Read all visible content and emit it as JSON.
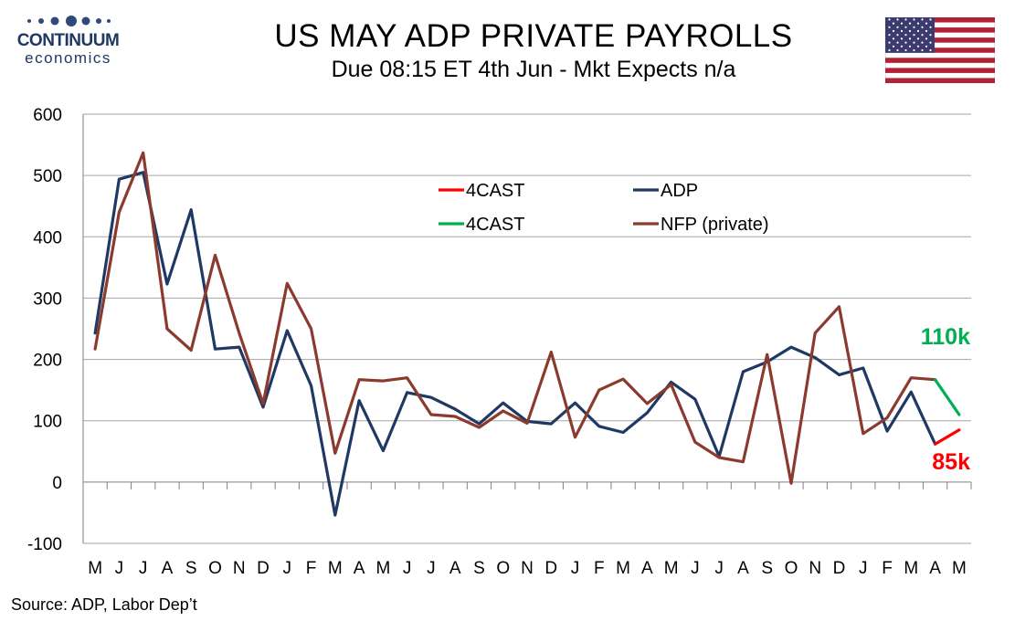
{
  "header": {
    "title": "US MAY ADP PRIVATE PAYROLLS",
    "subtitle": "Due 08:15 ET 4th Jun - Mkt Expects n/a"
  },
  "logo": {
    "brand": "CONTINUUM",
    "sub": "economics",
    "color": "#1f3864"
  },
  "flag": {
    "name": "us-flag-icon"
  },
  "source": "Source: ADP, Labor Dep’t",
  "chart_data": {
    "type": "line",
    "categories": [
      "M",
      "J",
      "J",
      "A",
      "S",
      "O",
      "N",
      "D",
      "J",
      "F",
      "M",
      "A",
      "M",
      "J",
      "J",
      "A",
      "S",
      "O",
      "N",
      "D",
      "J",
      "F",
      "M",
      "A",
      "M",
      "J",
      "J",
      "A",
      "S",
      "O",
      "N",
      "D",
      "J",
      "F",
      "M",
      "A",
      "M"
    ],
    "ylim": [
      -100,
      600
    ],
    "yticks": [
      "-100",
      "0",
      "100",
      "200",
      "300",
      "400",
      "500",
      "600"
    ],
    "grid": true,
    "legend_position": "upper-center",
    "series": [
      {
        "name": "ADP",
        "color": "#1f3864",
        "values": [
          243,
          494,
          505,
          323,
          444,
          217,
          220,
          122,
          247,
          157,
          -54,
          133,
          51,
          146,
          138,
          119,
          95,
          129,
          99,
          95,
          129,
          91,
          81,
          113,
          163,
          135,
          42,
          180,
          196,
          220,
          203,
          175,
          186,
          83,
          147,
          62,
          null
        ]
      },
      {
        "name": "NFP (private)",
        "color": "#8b3a2e",
        "values": [
          217,
          440,
          537,
          250,
          215,
          370,
          243,
          128,
          324,
          250,
          47,
          167,
          165,
          170,
          110,
          107,
          89,
          116,
          96,
          212,
          73,
          150,
          168,
          128,
          159,
          65,
          40,
          33,
          208,
          -2,
          243,
          286,
          79,
          105,
          170,
          167,
          null
        ]
      },
      {
        "name": "4CAST",
        "color": "#ff0000",
        "values": [
          null,
          null,
          null,
          null,
          null,
          null,
          null,
          null,
          null,
          null,
          null,
          null,
          null,
          null,
          null,
          null,
          null,
          null,
          null,
          null,
          null,
          null,
          null,
          null,
          null,
          null,
          null,
          null,
          null,
          null,
          null,
          null,
          null,
          null,
          null,
          62,
          85
        ]
      },
      {
        "name": "4CAST",
        "color": "#00b050",
        "values": [
          null,
          null,
          null,
          null,
          null,
          null,
          null,
          null,
          null,
          null,
          null,
          null,
          null,
          null,
          null,
          null,
          null,
          null,
          null,
          null,
          null,
          null,
          null,
          null,
          null,
          null,
          null,
          null,
          null,
          null,
          null,
          null,
          null,
          null,
          null,
          167,
          110
        ]
      }
    ],
    "annotations": [
      {
        "text": "110k",
        "color": "#00b050"
      },
      {
        "text": "85k",
        "color": "#ff0000"
      }
    ]
  }
}
